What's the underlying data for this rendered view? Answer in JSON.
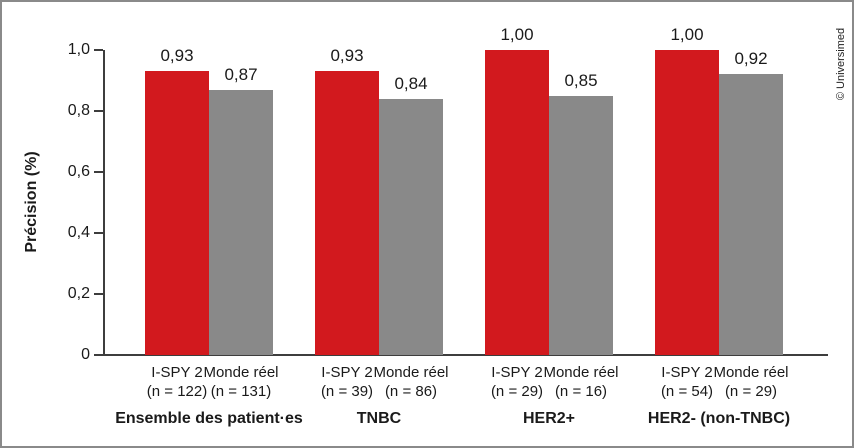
{
  "chart_data": {
    "type": "bar",
    "title": "",
    "ylabel": "Précision (%)",
    "xlabel": "",
    "ylim": [
      0,
      1.0
    ],
    "grid": false,
    "legend": "none (series identified by per-bar x labels)",
    "yticks": [
      {
        "value": 0.0,
        "label": "0"
      },
      {
        "value": 0.2,
        "label": "0,2"
      },
      {
        "value": 0.4,
        "label": "0,4"
      },
      {
        "value": 0.6,
        "label": "0,6"
      },
      {
        "value": 0.8,
        "label": "0,8"
      },
      {
        "value": 1.0,
        "label": "1,0"
      }
    ],
    "series": [
      {
        "name": "I-SPY 2",
        "color": "#d2191e"
      },
      {
        "name": "Monde réel",
        "color": "#898989"
      }
    ],
    "groups": [
      {
        "label": "Ensemble des patient·es",
        "bars": [
          {
            "series": "I-SPY 2",
            "n_label": "(n = 122)",
            "value": 0.93,
            "value_label": "0,93",
            "color": "#d2191e"
          },
          {
            "series": "Monde réel",
            "n_label": "(n = 131)",
            "value": 0.87,
            "value_label": "0,87",
            "color": "#898989"
          }
        ]
      },
      {
        "label": "TNBC",
        "bars": [
          {
            "series": "I-SPY 2",
            "n_label": "(n = 39)",
            "value": 0.93,
            "value_label": "0,93",
            "color": "#d2191e"
          },
          {
            "series": "Monde réel",
            "n_label": "(n = 86)",
            "value": 0.84,
            "value_label": "0,84",
            "color": "#898989"
          }
        ]
      },
      {
        "label": "HER2+",
        "bars": [
          {
            "series": "I-SPY 2",
            "n_label": "(n = 29)",
            "value": 1.0,
            "value_label": "1,00",
            "color": "#d2191e"
          },
          {
            "series": "Monde réel",
            "n_label": "(n = 16)",
            "value": 0.85,
            "value_label": "0,85",
            "color": "#898989"
          }
        ]
      },
      {
        "label": "HER2- (non-TNBC)",
        "bars": [
          {
            "series": "I-SPY 2",
            "n_label": "(n = 54)",
            "value": 1.0,
            "value_label": "1,00",
            "color": "#d2191e"
          },
          {
            "series": "Monde réel",
            "n_label": "(n = 29)",
            "value": 0.92,
            "value_label": "0,92",
            "color": "#898989"
          }
        ]
      }
    ],
    "watermark": "© Universimed",
    "colors": {
      "bar_red": "#d2191e",
      "bar_gray": "#898989",
      "axis": "#3d3d3d",
      "text": "#1a1a1a",
      "frame_border": "#8a8a8a"
    }
  }
}
